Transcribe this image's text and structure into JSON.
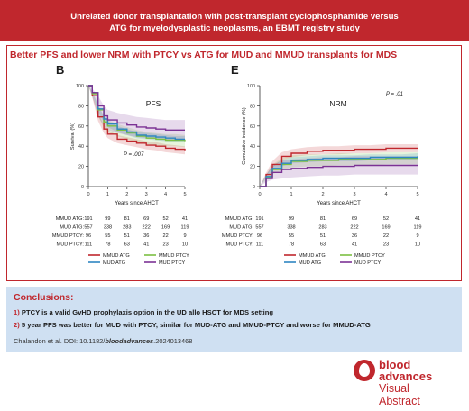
{
  "header": {
    "title_line1": "Unrelated donor transplantation with post-transplant cyclophosphamide versus",
    "title_line2": "ATG for myelodysplastic neoplasms, an EBMT registry study"
  },
  "subtitle": "Better PFS and lower NRM with PTCY vs ATG for MUD and MMUD transplants for MDS",
  "chart_data": [
    {
      "type": "line",
      "panel": "B",
      "title": "PFS",
      "xlabel": "Years since AHCT",
      "ylabel": "Survival (%)",
      "xlim": [
        0,
        5
      ],
      "ylim": [
        0,
        100
      ],
      "xticks": [
        0,
        1,
        2,
        3,
        4,
        5
      ],
      "yticks": [
        0,
        20,
        40,
        60,
        80,
        100
      ],
      "annotation": "P = .007",
      "series": [
        {
          "name": "MMUD ATG",
          "color": "#c0272d",
          "band": 4,
          "points": [
            [
              0,
              100
            ],
            [
              0.2,
              90
            ],
            [
              0.5,
              69
            ],
            [
              0.8,
              57
            ],
            [
              1,
              52
            ],
            [
              1.5,
              47
            ],
            [
              2,
              45
            ],
            [
              2.5,
              43
            ],
            [
              3,
              41
            ],
            [
              3.5,
              40
            ],
            [
              4,
              38
            ],
            [
              4.5,
              37
            ],
            [
              5,
              36
            ]
          ]
        },
        {
          "name": "MMUD PTCY",
          "color": "#7cc042",
          "band": 6,
          "points": [
            [
              0,
              100
            ],
            [
              0.2,
              92
            ],
            [
              0.5,
              76
            ],
            [
              0.8,
              64
            ],
            [
              1,
              60
            ],
            [
              1.5,
              56
            ],
            [
              2,
              53
            ],
            [
              2.5,
              50
            ],
            [
              3,
              48
            ],
            [
              3.5,
              47
            ],
            [
              4,
              46
            ],
            [
              4.5,
              46
            ],
            [
              5,
              45
            ]
          ]
        },
        {
          "name": "MUD ATG",
          "color": "#2e86c1",
          "band": 3,
          "points": [
            [
              0,
              100
            ],
            [
              0.2,
              93
            ],
            [
              0.5,
              77
            ],
            [
              0.8,
              67
            ],
            [
              1,
              62
            ],
            [
              1.5,
              57
            ],
            [
              2,
              54
            ],
            [
              2.5,
              51
            ],
            [
              3,
              50
            ],
            [
              3.5,
              49
            ],
            [
              4,
              48
            ],
            [
              4.5,
              47
            ],
            [
              5,
              47
            ]
          ]
        },
        {
          "name": "MUD PTCY",
          "color": "#7b3294",
          "band": 10,
          "points": [
            [
              0,
              100
            ],
            [
              0.2,
              93
            ],
            [
              0.5,
              80
            ],
            [
              0.8,
              70
            ],
            [
              1,
              66
            ],
            [
              1.5,
              63
            ],
            [
              2,
              61
            ],
            [
              2.5,
              59
            ],
            [
              3,
              58
            ],
            [
              3.5,
              57
            ],
            [
              4,
              56
            ],
            [
              4.5,
              56
            ],
            [
              5,
              56
            ]
          ]
        }
      ],
      "risk_table": {
        "times": [
          0,
          1,
          2,
          3,
          4,
          5
        ],
        "rows": [
          {
            "label": "MMUD ATG:",
            "values": [
              "191",
              "99",
              "81",
              "69",
              "52",
              "41"
            ]
          },
          {
            "label": "MUD ATG:",
            "values": [
              "557",
              "338",
              "283",
              "222",
              "169",
              "119"
            ]
          },
          {
            "label": "MMUD PTCY:",
            "values": [
              "96",
              "55",
              "51",
              "36",
              "22",
              "9"
            ]
          },
          {
            "label": "MUD PTCY:",
            "values": [
              "111",
              "78",
              "63",
              "41",
              "23",
              "10"
            ]
          }
        ]
      },
      "legend": [
        {
          "label": "MMUD ATG",
          "color": "#c0272d"
        },
        {
          "label": "MMUD PTCY",
          "color": "#7cc042"
        },
        {
          "label": "MUD ATG",
          "color": "#2e86c1"
        },
        {
          "label": "MUD PTCY",
          "color": "#7b3294"
        }
      ]
    },
    {
      "type": "line",
      "panel": "E",
      "title": "NRM",
      "xlabel": "Years since AHCT",
      "ylabel": "Cumulative incidence (%)",
      "xlim": [
        0,
        5
      ],
      "ylim": [
        0,
        100
      ],
      "xticks": [
        0,
        1,
        2,
        3,
        4,
        5
      ],
      "yticks": [
        0,
        20,
        40,
        60,
        80,
        100
      ],
      "annotation": "P = .01",
      "series": [
        {
          "name": "MMUD ATG",
          "color": "#c0272d",
          "band": 4,
          "points": [
            [
              0,
              0
            ],
            [
              0.2,
              12
            ],
            [
              0.4,
              22
            ],
            [
              0.7,
              30
            ],
            [
              1,
              33
            ],
            [
              1.5,
              35
            ],
            [
              2,
              36
            ],
            [
              2.5,
              36
            ],
            [
              3,
              37
            ],
            [
              3.5,
              37
            ],
            [
              4,
              38
            ],
            [
              4.5,
              38
            ],
            [
              5,
              38
            ]
          ]
        },
        {
          "name": "MMUD PTCY",
          "color": "#7cc042",
          "band": 6,
          "points": [
            [
              0,
              0
            ],
            [
              0.2,
              9
            ],
            [
              0.4,
              17
            ],
            [
              0.7,
              22
            ],
            [
              1,
              25
            ],
            [
              1.5,
              26
            ],
            [
              2,
              26
            ],
            [
              2.5,
              27
            ],
            [
              3,
              27
            ],
            [
              3.5,
              27
            ],
            [
              4,
              28
            ],
            [
              4.5,
              28
            ],
            [
              5,
              28
            ]
          ]
        },
        {
          "name": "MUD ATG",
          "color": "#2e86c1",
          "band": 3,
          "points": [
            [
              0,
              0
            ],
            [
              0.2,
              10
            ],
            [
              0.4,
              18
            ],
            [
              0.7,
              23
            ],
            [
              1,
              26
            ],
            [
              1.5,
              27
            ],
            [
              2,
              28
            ],
            [
              2.5,
              28
            ],
            [
              3,
              28
            ],
            [
              3.5,
              29
            ],
            [
              4,
              29
            ],
            [
              4.5,
              29
            ],
            [
              5,
              30
            ]
          ]
        },
        {
          "name": "MUD PTCY",
          "color": "#7b3294",
          "band": 9,
          "points": [
            [
              0,
              0
            ],
            [
              0.2,
              8
            ],
            [
              0.4,
              14
            ],
            [
              0.7,
              17
            ],
            [
              1,
              18
            ],
            [
              1.5,
              19
            ],
            [
              2,
              20
            ],
            [
              2.5,
              20
            ],
            [
              3,
              21
            ],
            [
              3.5,
              21
            ],
            [
              4,
              21
            ],
            [
              4.5,
              21
            ],
            [
              5,
              21
            ]
          ]
        }
      ],
      "risk_table": {
        "times": [
          0,
          1,
          2,
          3,
          4,
          5
        ],
        "rows": [
          {
            "label": "MMUD ATG:",
            "values": [
              "191",
              "99",
              "81",
              "69",
              "52",
              "41"
            ]
          },
          {
            "label": "MUD ATG:",
            "values": [
              "557",
              "338",
              "283",
              "222",
              "169",
              "119"
            ]
          },
          {
            "label": "MMUD PTCY:",
            "values": [
              "96",
              "55",
              "51",
              "36",
              "22",
              "9"
            ]
          },
          {
            "label": "MUD PTCY:",
            "values": [
              "111",
              "78",
              "63",
              "41",
              "23",
              "10"
            ]
          }
        ]
      },
      "legend": [
        {
          "label": "MMUD ATG",
          "color": "#c0272d"
        },
        {
          "label": "MMUD PTCY",
          "color": "#7cc042"
        },
        {
          "label": "MUD ATG",
          "color": "#2e86c1"
        },
        {
          "label": "MUD PTCY",
          "color": "#7b3294"
        }
      ]
    }
  ],
  "conclusions": {
    "heading": "Conclusions:",
    "item1_num": "1)",
    "item1_text": "PTCY is a valid GvHD prophylaxis option in the UD allo HSCT for MDS setting",
    "item2_num": "2)",
    "item2_text": "5 year PFS was better for MUD with PTCY, similar for MUD-ATG and MMUD-PTCY and worse for MMUD-ATG",
    "citation_prefix": "Chalandon et al. DOI: 10.1182/",
    "citation_journal": "bloodadvances",
    "citation_suffix": ".2024013468"
  },
  "brand": {
    "line1": "blood",
    "line2": "advances",
    "line3": "Visual",
    "line4": "Abstract",
    "color": "#c0272d"
  }
}
